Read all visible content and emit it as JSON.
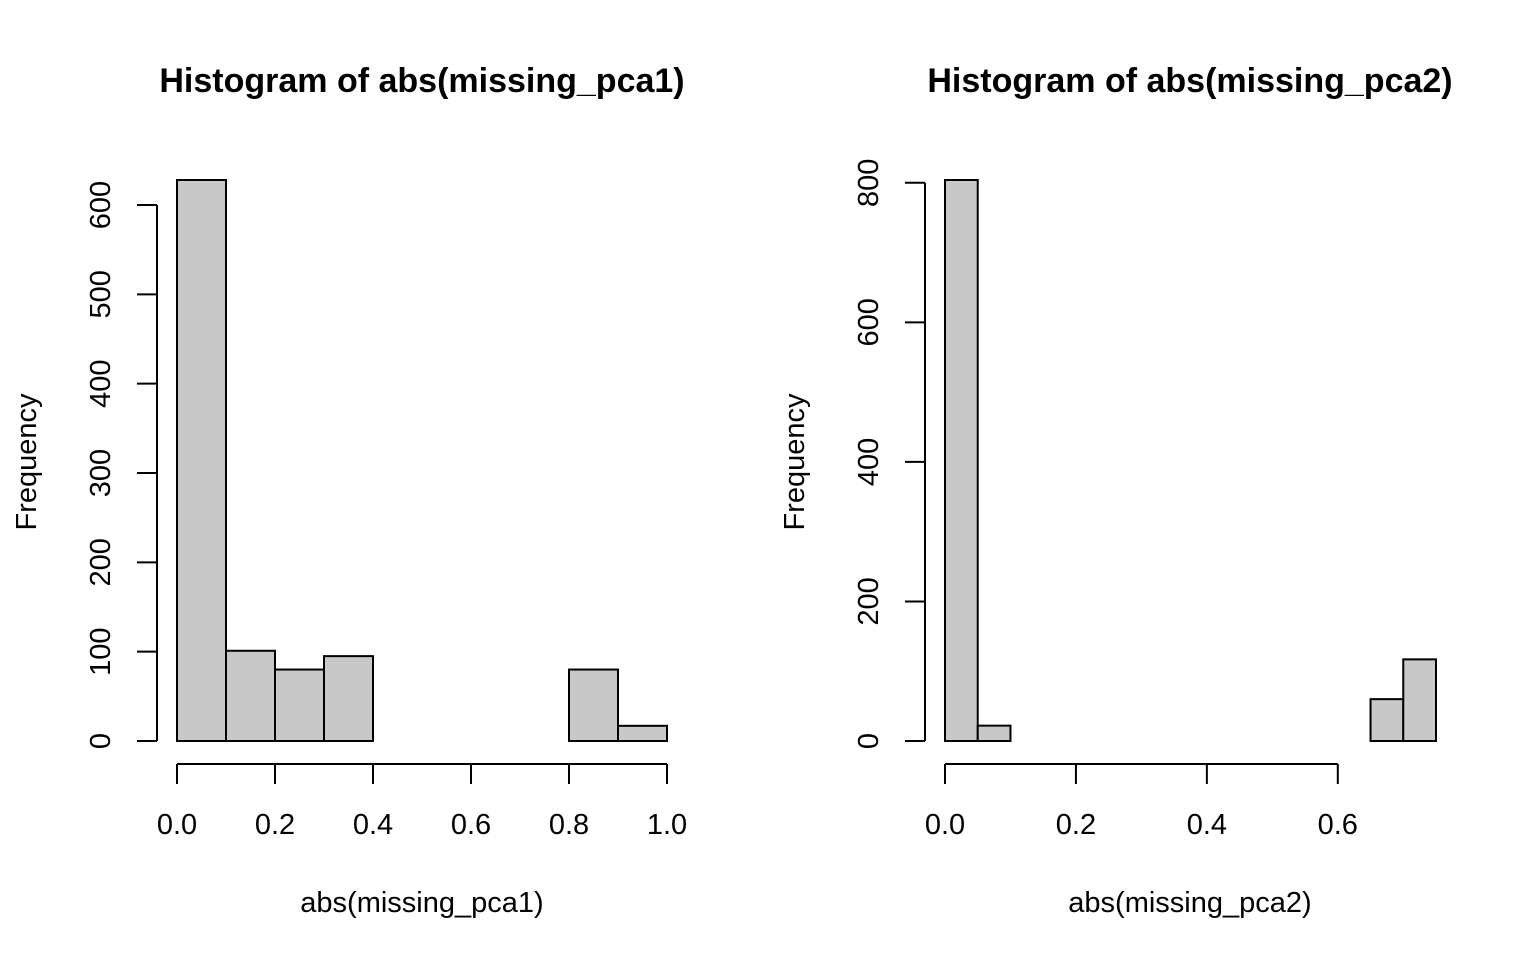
{
  "chart_data": [
    {
      "type": "bar",
      "title": "Histogram of abs(missing_pca1)",
      "xlabel": "abs(missing_pca1)",
      "ylabel": "Frequency",
      "bins": [
        {
          "x0": 0.0,
          "x1": 0.1,
          "count": 628
        },
        {
          "x0": 0.1,
          "x1": 0.2,
          "count": 101
        },
        {
          "x0": 0.2,
          "x1": 0.3,
          "count": 80
        },
        {
          "x0": 0.3,
          "x1": 0.4,
          "count": 95
        },
        {
          "x0": 0.4,
          "x1": 0.5,
          "count": 0
        },
        {
          "x0": 0.5,
          "x1": 0.6,
          "count": 0
        },
        {
          "x0": 0.6,
          "x1": 0.7,
          "count": 0
        },
        {
          "x0": 0.7,
          "x1": 0.8,
          "count": 0
        },
        {
          "x0": 0.8,
          "x1": 0.9,
          "count": 80
        },
        {
          "x0": 0.9,
          "x1": 1.0,
          "count": 17
        }
      ],
      "xticks": [
        0.0,
        0.2,
        0.4,
        0.6,
        0.8,
        1.0
      ],
      "xtick_labels": [
        "0.0",
        "0.2",
        "0.4",
        "0.6",
        "0.8",
        "1.0"
      ],
      "yticks": [
        0,
        100,
        200,
        300,
        400,
        500,
        600
      ],
      "ytick_labels": [
        "0",
        "100",
        "200",
        "300",
        "400",
        "500",
        "600"
      ],
      "xlim": [
        0.0,
        1.0
      ],
      "ylim": [
        0,
        628
      ],
      "grid": false,
      "bar_color": "#c8c8c8"
    },
    {
      "type": "bar",
      "title": "Histogram of abs(missing_pca2)",
      "xlabel": "abs(missing_pca2)",
      "ylabel": "Frequency",
      "bins": [
        {
          "x0": 0.0,
          "x1": 0.05,
          "count": 804
        },
        {
          "x0": 0.05,
          "x1": 0.1,
          "count": 22
        },
        {
          "x0": 0.1,
          "x1": 0.15,
          "count": 0
        },
        {
          "x0": 0.15,
          "x1": 0.2,
          "count": 0
        },
        {
          "x0": 0.2,
          "x1": 0.25,
          "count": 0
        },
        {
          "x0": 0.25,
          "x1": 0.3,
          "count": 0
        },
        {
          "x0": 0.3,
          "x1": 0.35,
          "count": 0
        },
        {
          "x0": 0.35,
          "x1": 0.4,
          "count": 0
        },
        {
          "x0": 0.4,
          "x1": 0.45,
          "count": 0
        },
        {
          "x0": 0.45,
          "x1": 0.5,
          "count": 0
        },
        {
          "x0": 0.5,
          "x1": 0.55,
          "count": 0
        },
        {
          "x0": 0.55,
          "x1": 0.6,
          "count": 0
        },
        {
          "x0": 0.6,
          "x1": 0.65,
          "count": 0
        },
        {
          "x0": 0.65,
          "x1": 0.7,
          "count": 60
        },
        {
          "x0": 0.7,
          "x1": 0.75,
          "count": 117
        }
      ],
      "xticks": [
        0.0,
        0.2,
        0.4,
        0.6
      ],
      "xtick_labels": [
        "0.0",
        "0.2",
        "0.4",
        "0.6"
      ],
      "yticks": [
        0,
        200,
        400,
        600,
        800
      ],
      "ytick_labels": [
        "0",
        "200",
        "400",
        "600",
        "800"
      ],
      "xlim": [
        0.0,
        0.75
      ],
      "ylim": [
        0,
        804
      ],
      "grid": false,
      "bar_color": "#c8c8c8"
    }
  ]
}
